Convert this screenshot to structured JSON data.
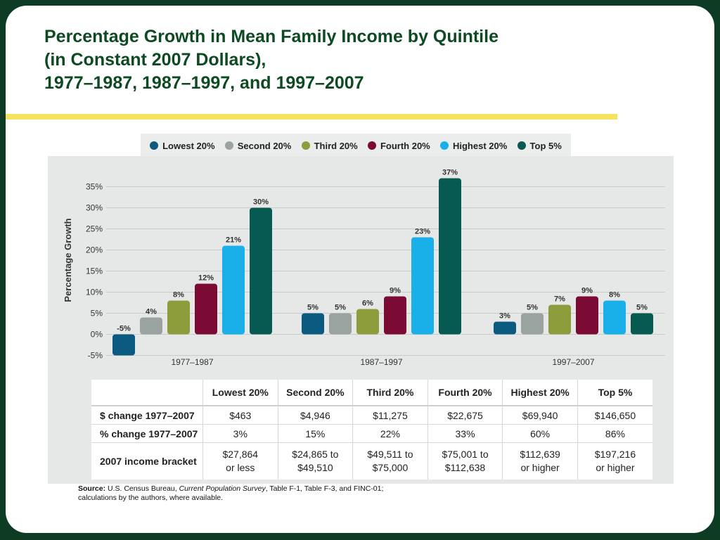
{
  "title": {
    "line1": "Percentage Growth in Mean Family Income by Quintile",
    "line2": "(in Constant 2007 Dollars),",
    "line3": "1977–1987, 1987–1997, and 1997–2007"
  },
  "colors": {
    "Lowest 20%": "#0b5a80",
    "Second 20%": "#9aa3a0",
    "Third 20%": "#8e9d3b",
    "Fourth 20%": "#7b0a34",
    "Highest 20%": "#19b0ea",
    "Top 5%": "#075a52"
  },
  "chart_data": {
    "type": "bar",
    "categories": [
      "1977–1987",
      "1987–1997",
      "1997–2007"
    ],
    "series": [
      {
        "name": "Lowest 20%",
        "values": [
          -5,
          5,
          3
        ],
        "labels": [
          "-5%",
          "5%",
          "3%"
        ]
      },
      {
        "name": "Second 20%",
        "values": [
          4,
          5,
          5
        ],
        "labels": [
          "4%",
          "5%",
          "5%"
        ]
      },
      {
        "name": "Third 20%",
        "values": [
          8,
          6,
          7
        ],
        "labels": [
          "8%",
          "6%",
          "7%"
        ]
      },
      {
        "name": "Fourth 20%",
        "values": [
          12,
          9,
          9
        ],
        "labels": [
          "12%",
          "9%",
          "9%"
        ]
      },
      {
        "name": "Highest 20%",
        "values": [
          21,
          23,
          8
        ],
        "labels": [
          "21%",
          "23%",
          "8%"
        ]
      },
      {
        "name": "Top 5%",
        "values": [
          30,
          37,
          5
        ],
        "labels": [
          "30%",
          "37%",
          "5%"
        ]
      }
    ],
    "ylabel": "Percentage Growth",
    "ylim": [
      -5,
      37
    ],
    "yticks": [
      35,
      30,
      25,
      20,
      15,
      10,
      5,
      0,
      -5
    ],
    "ytick_labels": [
      "35%",
      "30%",
      "25%",
      "20%",
      "15%",
      "10%",
      "5%",
      "0%",
      "-5%"
    ],
    "grid": true,
    "legend_position": "top"
  },
  "table": {
    "headers": [
      "",
      "Lowest 20%",
      "Second 20%",
      "Third 20%",
      "Fourth 20%",
      "Highest 20%",
      "Top 5%"
    ],
    "rows": [
      {
        "label": "$ change 1977–2007",
        "cells": [
          "$463",
          "$4,946",
          "$11,275",
          "$22,675",
          "$69,940",
          "$146,650"
        ]
      },
      {
        "label": "% change 1977–2007",
        "cells": [
          "3%",
          "15%",
          "22%",
          "33%",
          "60%",
          "86%"
        ]
      },
      {
        "label": "2007 income bracket",
        "cells": [
          [
            "$27,864",
            "or less"
          ],
          [
            "$24,865 to",
            "$49,510"
          ],
          [
            "$49,511 to",
            "$75,000"
          ],
          [
            "$75,001 to",
            "$112,638"
          ],
          [
            "$112,639",
            "or higher"
          ],
          [
            "$197,216",
            "or higher"
          ]
        ]
      }
    ]
  },
  "source": {
    "label": "Source:",
    "text1": " U.S. Census Bureau, ",
    "italic": "Current Population Survey",
    "text2": ", Table F-1, Table F-3, and FINC-01;",
    "line2": "calculations by the authors, where available."
  }
}
